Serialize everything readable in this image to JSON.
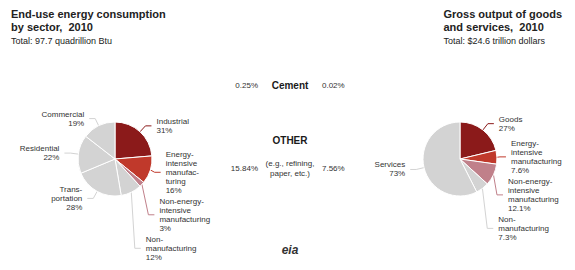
{
  "chart_data": [
    {
      "type": "pie",
      "title": "End-use energy consumption\nby sector,  2010",
      "subtitle": "Total: 97.7 quadrillion Btu",
      "categories": [
        "Industrial\n31%",
        "Energy-\nintensive\nmanufac-\nturing\n16%",
        "Non-energy-\nintensive\nmanufacturing\n3%",
        "Non-\nmanufacturing\n12%",
        "Trans-\nportation\n28%",
        "Residential\n22%",
        "Commercial\n19%"
      ],
      "values": [
        31,
        16,
        3,
        12,
        28,
        22,
        19
      ],
      "colors": [
        "#8B1A1A",
        "#C0392B",
        "#C0808A",
        "#D3D3D3",
        "#D3D3D3",
        "#D3D3D3",
        "#D3D3D3"
      ]
    },
    {
      "type": "text",
      "annotations": [
        "Cement",
        "0.25%",
        "0.02%",
        "OTHER",
        "(e.g., refining,\npaper, etc.)",
        "15.84%",
        "7.56%",
        "eia"
      ]
    },
    {
      "type": "pie",
      "title": "Gross output of goods\nand services,  2010",
      "subtitle": "Total: $24.6 trillion dollars",
      "categories": [
        "Goods\n27%",
        "Energy-\nintensive\nmanufacturing\n7.6%",
        "Non-energy-\nintensive\nmanufacturing\n12.1%",
        "Non-\nmanufacturing\n7.3%",
        "Services\n73%"
      ],
      "values": [
        27,
        7.6,
        12.1,
        7.3,
        73
      ],
      "colors": [
        "#8B1A1A",
        "#C0392B",
        "#C0808A",
        "#D3D3D3",
        "#D3D3D3"
      ]
    }
  ]
}
